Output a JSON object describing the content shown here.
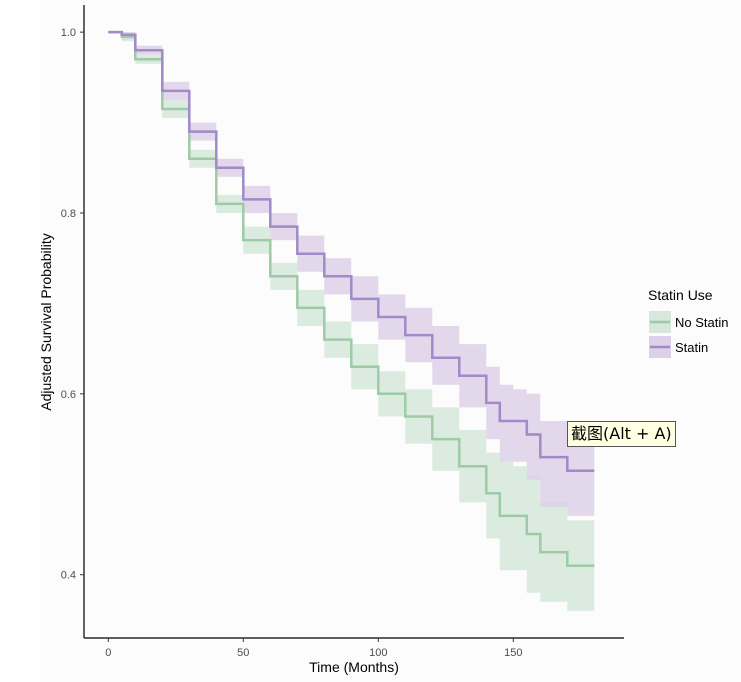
{
  "chart_data": {
    "type": "line",
    "subtype": "kaplan-meier step curves with confidence bands",
    "xlabel": "Time (Months)",
    "ylabel": "Adjusted Survival Probability",
    "xlim": [
      -9,
      191
    ],
    "ylim": [
      0.33,
      1.03
    ],
    "x_ticks": [
      0,
      50,
      100,
      150
    ],
    "y_ticks": [
      0.4,
      0.6,
      0.8,
      1.0
    ],
    "x_tick_labels": [
      "0",
      "50",
      "100",
      "150"
    ],
    "y_tick_labels": [
      "0.4",
      "0.6",
      "0.8",
      "1.0"
    ],
    "legend": {
      "title": "Statin Use",
      "position": "right"
    },
    "series": [
      {
        "name": "No Statin",
        "color": "#9ecaa6",
        "band_color": "#d5e8db",
        "x": [
          0,
          5,
          10,
          20,
          30,
          40,
          50,
          60,
          70,
          80,
          90,
          100,
          110,
          120,
          130,
          140,
          145,
          150,
          155,
          160,
          170,
          180
        ],
        "y": [
          1.0,
          0.995,
          0.97,
          0.915,
          0.86,
          0.81,
          0.77,
          0.73,
          0.695,
          0.66,
          0.63,
          0.6,
          0.575,
          0.55,
          0.52,
          0.49,
          0.465,
          0.465,
          0.445,
          0.425,
          0.41,
          0.41
        ],
        "lower": [
          1.0,
          0.99,
          0.965,
          0.905,
          0.85,
          0.8,
          0.755,
          0.715,
          0.675,
          0.64,
          0.605,
          0.575,
          0.545,
          0.515,
          0.48,
          0.44,
          0.405,
          0.405,
          0.38,
          0.37,
          0.36,
          0.36
        ],
        "upper": [
          1.0,
          1.0,
          0.975,
          0.925,
          0.87,
          0.82,
          0.785,
          0.745,
          0.715,
          0.68,
          0.655,
          0.625,
          0.605,
          0.585,
          0.56,
          0.535,
          0.525,
          0.52,
          0.51,
          0.48,
          0.46,
          0.46
        ]
      },
      {
        "name": "Statin",
        "color": "#a08ac8",
        "band_color": "#ddd0e8",
        "x": [
          0,
          5,
          10,
          20,
          30,
          40,
          50,
          60,
          70,
          80,
          90,
          100,
          110,
          120,
          130,
          140,
          145,
          150,
          155,
          160,
          170,
          180
        ],
        "y": [
          1.0,
          0.997,
          0.98,
          0.935,
          0.89,
          0.85,
          0.815,
          0.785,
          0.755,
          0.73,
          0.705,
          0.685,
          0.665,
          0.64,
          0.62,
          0.59,
          0.57,
          0.57,
          0.555,
          0.53,
          0.515,
          0.515
        ],
        "lower": [
          1.0,
          0.992,
          0.975,
          0.925,
          0.88,
          0.84,
          0.8,
          0.77,
          0.735,
          0.71,
          0.68,
          0.66,
          0.635,
          0.61,
          0.585,
          0.55,
          0.525,
          0.525,
          0.505,
          0.475,
          0.465,
          0.465
        ],
        "upper": [
          1.0,
          1.0,
          0.985,
          0.945,
          0.9,
          0.86,
          0.83,
          0.8,
          0.775,
          0.75,
          0.73,
          0.71,
          0.695,
          0.675,
          0.655,
          0.63,
          0.61,
          0.605,
          0.6,
          0.57,
          0.56,
          0.56
        ]
      }
    ]
  },
  "tooltip": {
    "text": "截图(Alt + A)"
  }
}
